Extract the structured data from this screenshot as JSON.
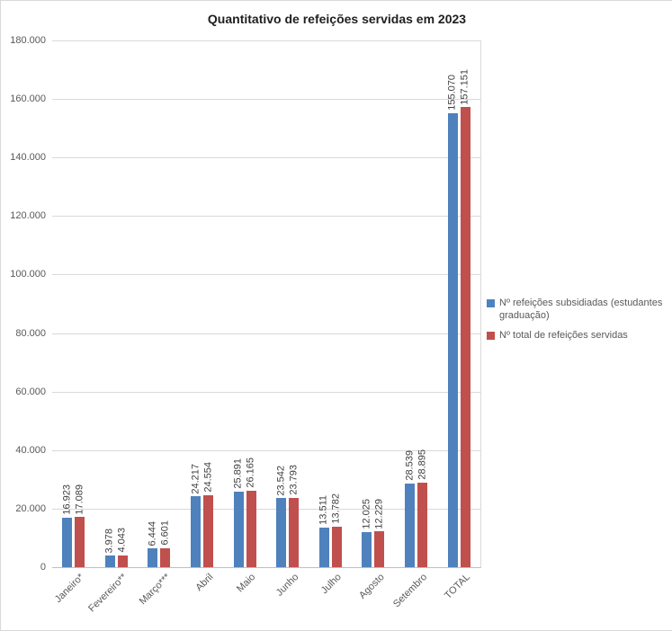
{
  "title": "Quantitativo de refeições servidas em 2023",
  "chart_data": {
    "type": "bar",
    "categories": [
      "Janeiro*",
      "Fevereiro**",
      "Março***",
      "Abril",
      "Maio",
      "Junho",
      "Julho",
      "Agosto",
      "Setembro",
      "TOTAL"
    ],
    "series": [
      {
        "name": "Nº refeições subsidiadas (estudantes graduação)",
        "color": "#4F81BD",
        "values": [
          16923,
          3978,
          6444,
          24217,
          25891,
          23542,
          13511,
          12025,
          28539,
          155070
        ],
        "labels": [
          "16.923",
          "3.978",
          "6.444",
          "24.217",
          "25.891",
          "23.542",
          "13.511",
          "12.025",
          "28.539",
          "155.070"
        ]
      },
      {
        "name": "Nº total de refeições servidas",
        "color": "#C0504D",
        "values": [
          17089,
          4043,
          6601,
          24554,
          26165,
          23793,
          13782,
          12229,
          28895,
          157151
        ],
        "labels": [
          "17.089",
          "4.043",
          "6.601",
          "24.554",
          "26.165",
          "23.793",
          "13.782",
          "12.229",
          "28.895",
          "157.151"
        ]
      }
    ],
    "xlabel": "",
    "ylabel": "",
    "ylim": [
      0,
      180000
    ],
    "ytick_step": 20000,
    "ytick_labels": [
      "0",
      "20.000",
      "40.000",
      "60.000",
      "80.000",
      "100.000",
      "120.000",
      "140.000",
      "160.000",
      "180.000"
    ],
    "grid": true,
    "legend_position": "right",
    "bar_label_rotation": 90,
    "xtick_rotation": 45
  }
}
